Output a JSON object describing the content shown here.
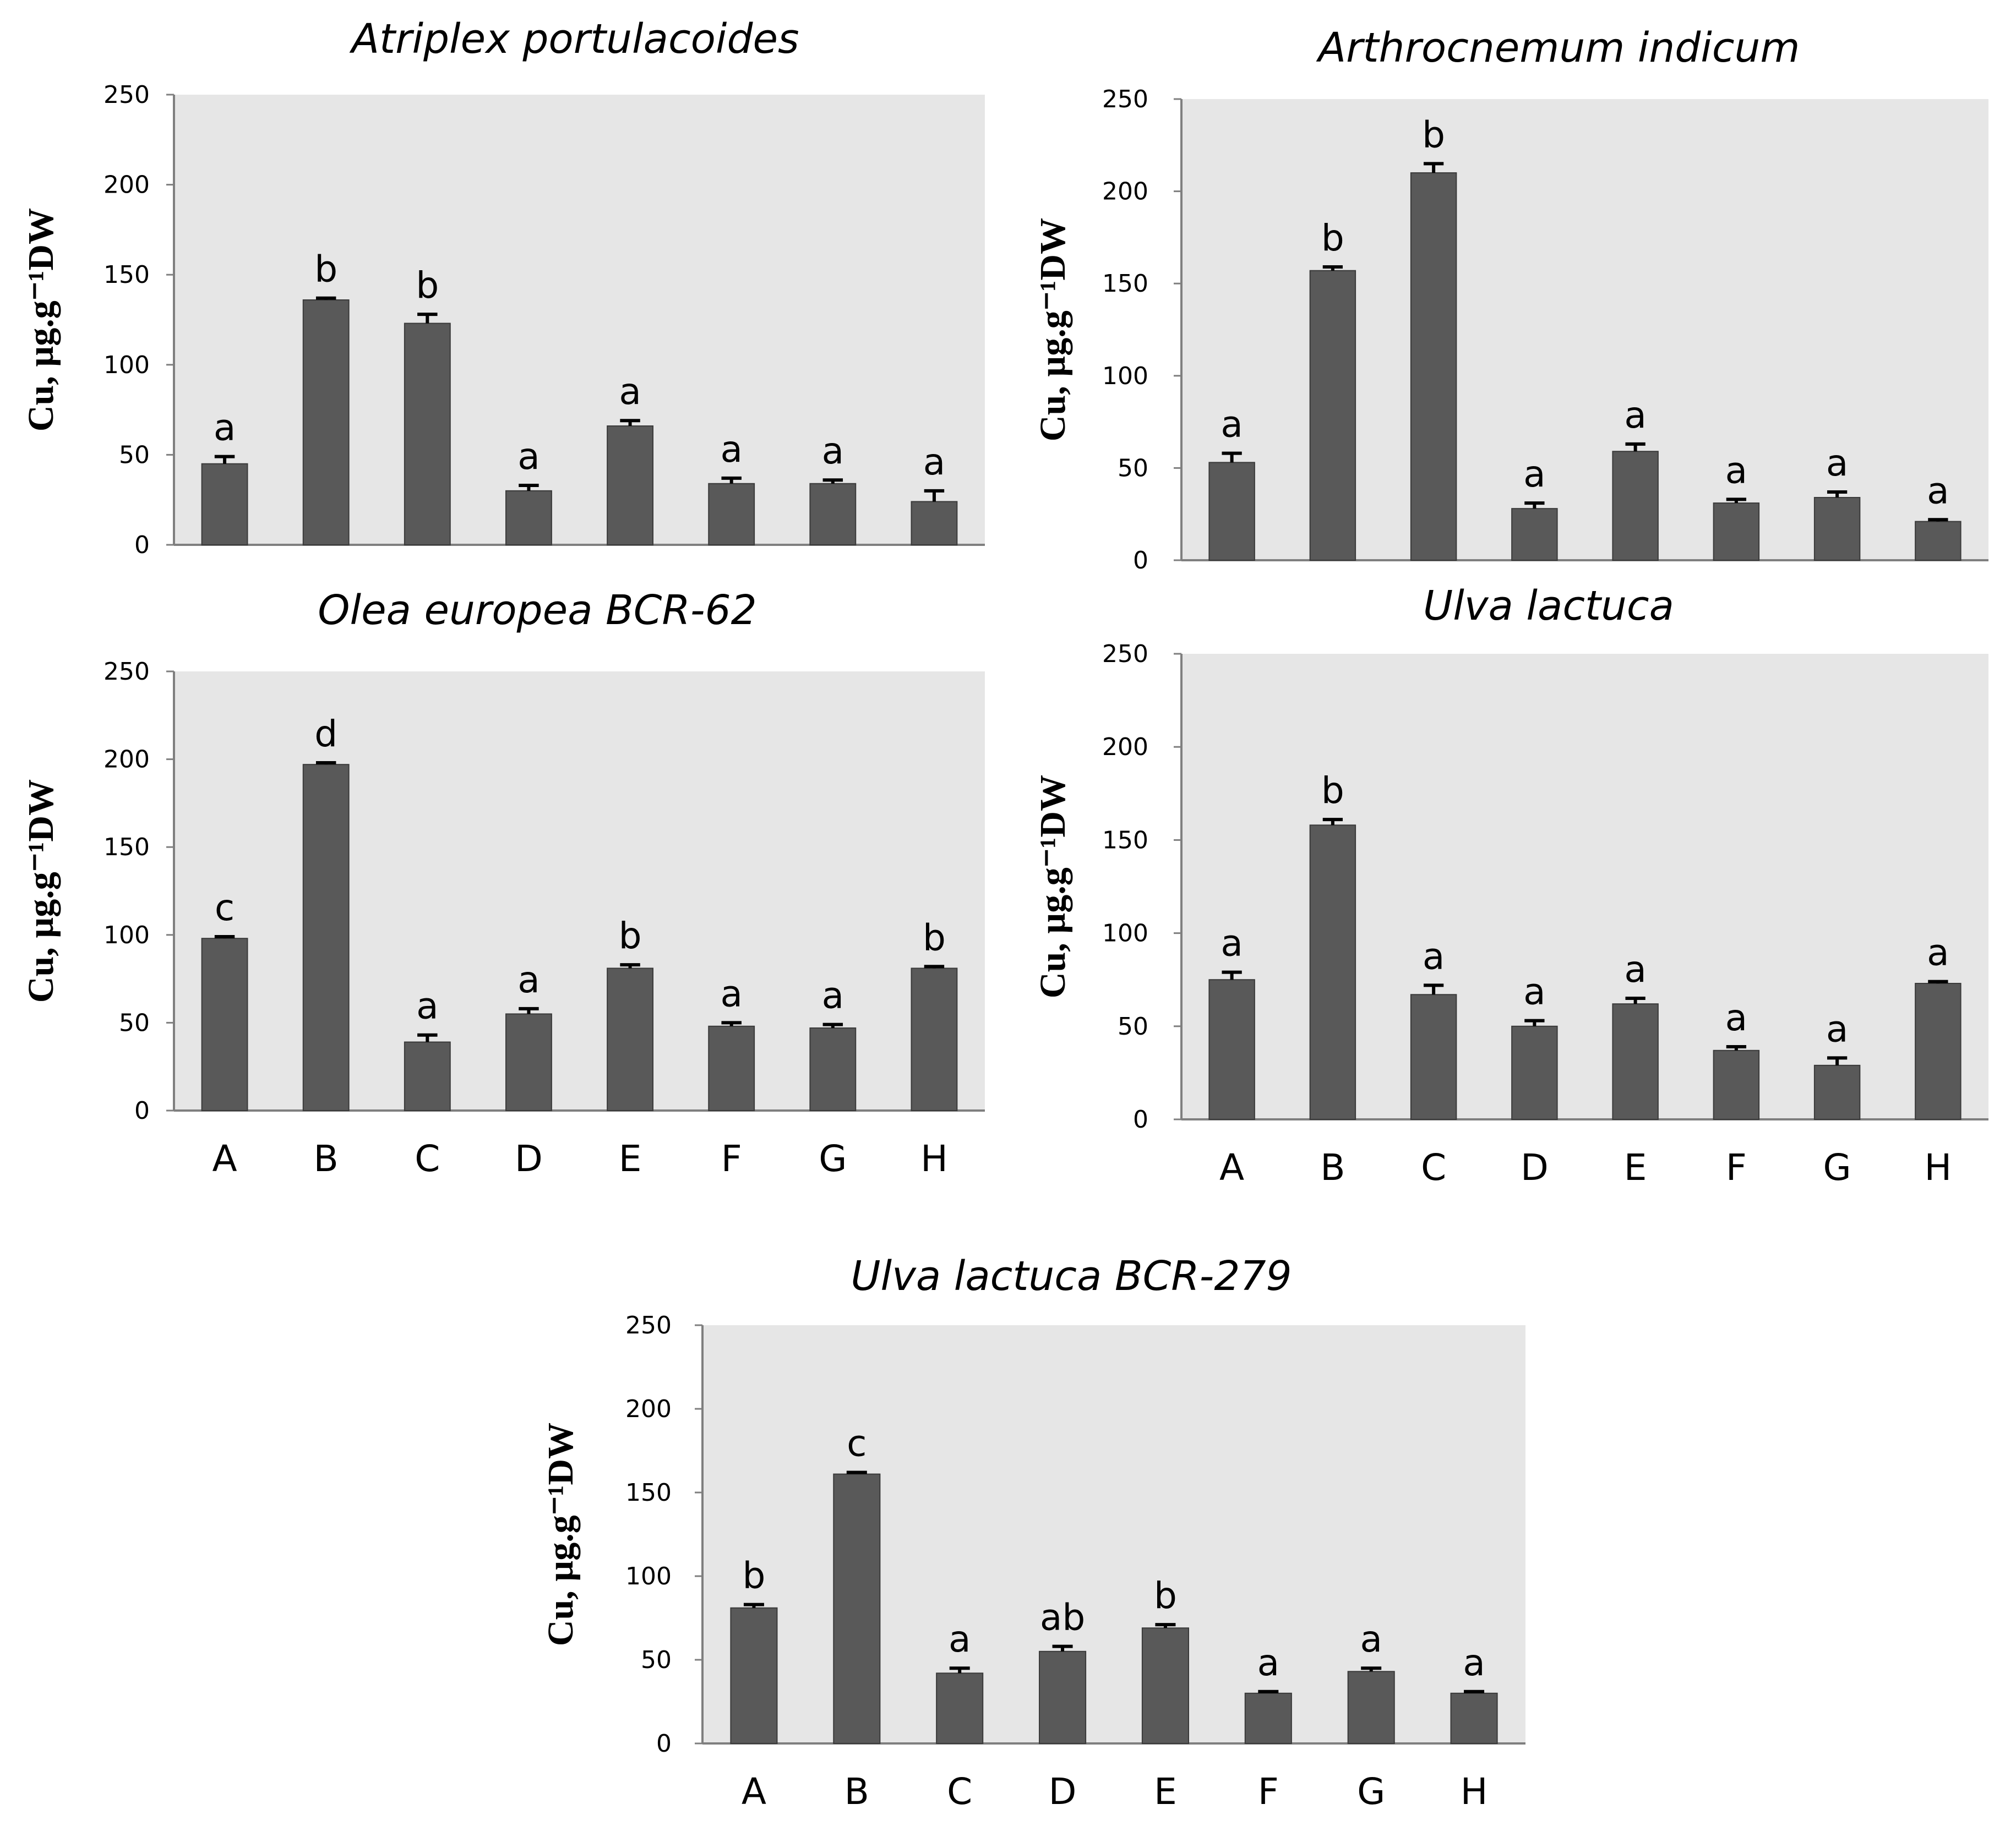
{
  "chart_data": [
    {
      "type": "bar",
      "title": "Atriplex portulacoides",
      "ylabel": "Cu, µg.g⁻¹DW",
      "xlabel": "",
      "ylim": [
        0,
        250
      ],
      "yticks": [
        0,
        50,
        100,
        150,
        200,
        250
      ],
      "categories": [
        "A",
        "B",
        "C",
        "D",
        "E",
        "F",
        "G",
        "H"
      ],
      "show_category_labels": false,
      "values": [
        45,
        136,
        123,
        30,
        66,
        34,
        34,
        24
      ],
      "errors": [
        4,
        1,
        5,
        3,
        3,
        3,
        2,
        6
      ],
      "letters": [
        "a",
        "b",
        "b",
        "a",
        "a",
        "a",
        "a",
        "a"
      ]
    },
    {
      "type": "bar",
      "title": "Arthrocnemum indicum",
      "ylabel": "Cu, µg.g⁻¹DW",
      "xlabel": "",
      "ylim": [
        0,
        250
      ],
      "yticks": [
        0,
        50,
        100,
        150,
        200,
        250
      ],
      "categories": [
        "A",
        "B",
        "C",
        "D",
        "E",
        "F",
        "G",
        "H"
      ],
      "show_category_labels": false,
      "values": [
        53,
        157,
        210,
        28,
        59,
        31,
        34,
        21
      ],
      "errors": [
        5,
        2,
        5,
        3,
        4,
        2,
        3,
        1
      ],
      "letters": [
        "a",
        "b",
        "b",
        "a",
        "a",
        "a",
        "a",
        "a"
      ]
    },
    {
      "type": "bar",
      "title": "Olea europea BCR-62",
      "ylabel": "Cu, µg.g⁻¹DW",
      "xlabel": "",
      "ylim": [
        0,
        250
      ],
      "yticks": [
        0,
        50,
        100,
        150,
        200,
        250
      ],
      "categories": [
        "A",
        "B",
        "C",
        "D",
        "E",
        "F",
        "G",
        "H"
      ],
      "show_category_labels": true,
      "values": [
        98,
        197,
        39,
        55,
        81,
        48,
        47,
        81
      ],
      "errors": [
        1,
        1,
        4,
        3,
        2,
        2,
        2,
        1
      ],
      "letters": [
        "c",
        "d",
        "a",
        "a",
        "b",
        "a",
        "a",
        "b"
      ]
    },
    {
      "type": "bar",
      "title": "Ulva lactuca",
      "ylabel": "Cu, µg.g⁻¹DW",
      "xlabel": "",
      "ylim": [
        0,
        250
      ],
      "yticks": [
        0,
        50,
        100,
        150,
        200,
        250
      ],
      "categories": [
        "A",
        "B",
        "C",
        "D",
        "E",
        "F",
        "G",
        "H"
      ],
      "show_category_labels": true,
      "values": [
        75,
        158,
        67,
        50,
        62,
        37,
        29,
        73
      ],
      "errors": [
        4,
        3,
        5,
        3,
        3,
        2,
        4,
        1
      ],
      "letters": [
        "a",
        "b",
        "a",
        "a",
        "a",
        "a",
        "a",
        "a"
      ]
    },
    {
      "type": "bar",
      "title": "Ulva lactuca BCR-279",
      "ylabel": "Cu, µg.g⁻¹DW",
      "xlabel": "",
      "ylim": [
        0,
        250
      ],
      "yticks": [
        0,
        50,
        100,
        150,
        200,
        250
      ],
      "categories": [
        "A",
        "B",
        "C",
        "D",
        "E",
        "F",
        "G",
        "H"
      ],
      "show_category_labels": true,
      "values": [
        81,
        161,
        42,
        55,
        69,
        30,
        43,
        30
      ],
      "errors": [
        2,
        1,
        3,
        3,
        2,
        1,
        2,
        1
      ],
      "letters": [
        "b",
        "c",
        "a",
        "ab",
        "b",
        "a",
        "a",
        "a"
      ]
    }
  ],
  "colors": {
    "plot_background": "#e6e6e6",
    "bar_fill": "#595959",
    "axis": "#7f7f7f"
  }
}
